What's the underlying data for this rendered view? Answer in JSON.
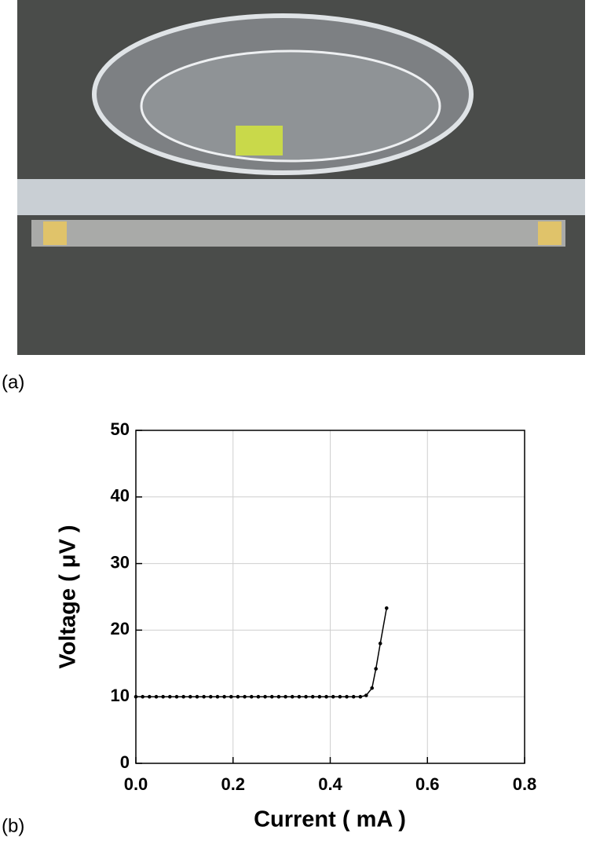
{
  "panel_a_label": "(a)",
  "panel_b_label": "(b)",
  "chart_data": {
    "type": "line",
    "x_label": "Current ( mA )",
    "y_label": "Voltage ( μV )",
    "x": [
      0,
      0.014,
      0.028,
      0.042,
      0.056,
      0.07,
      0.084,
      0.098,
      0.112,
      0.126,
      0.14,
      0.154,
      0.168,
      0.182,
      0.196,
      0.21,
      0.224,
      0.238,
      0.252,
      0.266,
      0.28,
      0.294,
      0.308,
      0.322,
      0.336,
      0.35,
      0.364,
      0.378,
      0.392,
      0.406,
      0.42,
      0.434,
      0.448,
      0.462,
      0.474,
      0.486,
      0.494,
      0.503,
      0.516
    ],
    "series": [
      {
        "color": "#000000",
        "values": [
          10,
          10,
          10,
          10,
          10,
          10,
          10,
          10,
          10,
          10,
          10,
          10,
          10,
          10,
          10,
          10,
          10,
          10,
          10,
          10,
          10,
          10,
          10,
          10,
          10,
          10,
          10,
          10,
          10,
          10,
          10,
          10,
          10,
          10,
          10.2,
          11.3,
          14.2,
          18,
          23.3
        ]
      }
    ],
    "xlim": [
      0,
      0.8
    ],
    "ylim": [
      0,
      50
    ],
    "xticks": [
      {
        "value": 0,
        "label": "0.0"
      },
      0.2,
      0.4,
      0.6,
      0.8
    ],
    "yticks": [
      0,
      10,
      20,
      30,
      40,
      50
    ],
    "grid": true
  }
}
